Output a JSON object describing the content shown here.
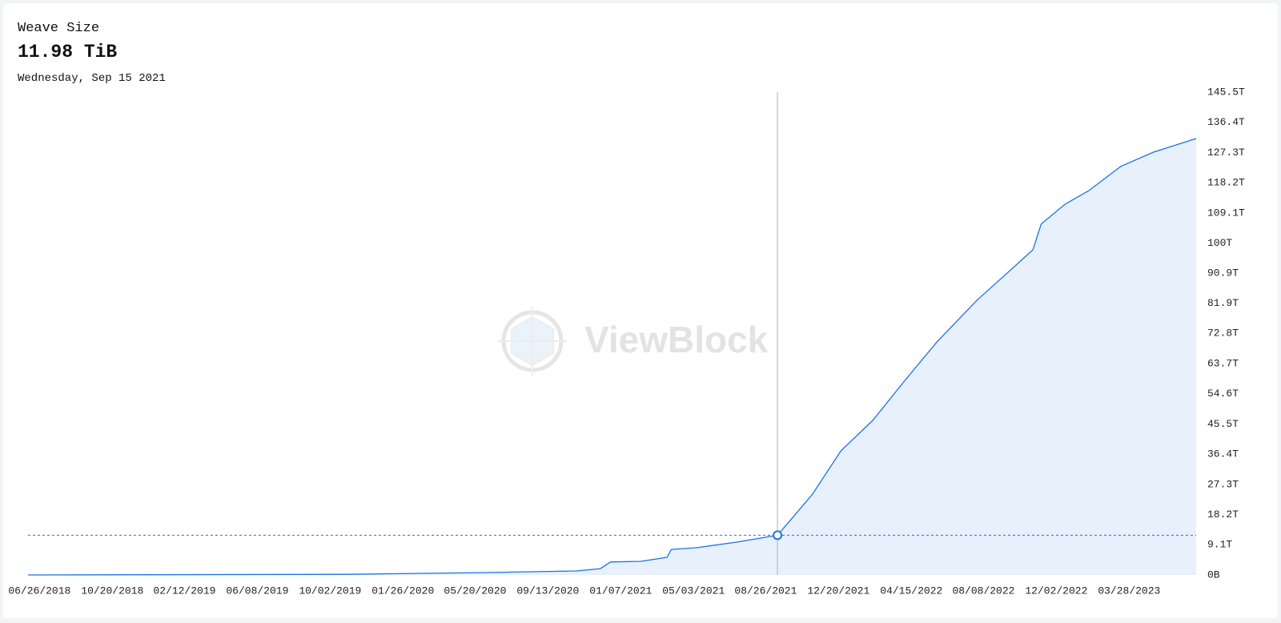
{
  "header": {
    "title": "Weave Size",
    "value_label": "11.98 TiB",
    "date_label": "Wednesday, Sep 15 2021"
  },
  "chart_data": {
    "type": "area",
    "watermark": "ViewBlock",
    "color": "#1a73e8",
    "fill": "#e8f0fc",
    "x": [
      "2018-06-09",
      "2019-11-02",
      "2020-05-30",
      "2020-10-30",
      "2020-12-07",
      "2020-12-23",
      "2021-02-09",
      "2021-03-23",
      "2021-03-30",
      "2021-05-09",
      "2021-07-12",
      "2021-09-15",
      "2021-10-16",
      "2021-11-10",
      "2021-12-25",
      "2022-02-14",
      "2022-04-06",
      "2022-05-27",
      "2022-07-30",
      "2022-10-27",
      "2022-11-09",
      "2022-12-17",
      "2023-01-24",
      "2023-03-16",
      "2023-05-07",
      "2023-07-14"
    ],
    "values": [
      0,
      0.2,
      0.7,
      1.2,
      1.9,
      3.9,
      4.1,
      5.3,
      7.7,
      8.2,
      9.9,
      11.98,
      18.8,
      24.4,
      37.4,
      46.6,
      58.6,
      70.2,
      82.8,
      98.0,
      105.7,
      111.7,
      115.8,
      123.1,
      127.4,
      131.5
    ],
    "cursor": {
      "x": "2021-09-15",
      "value": 11.98
    },
    "xlim": [
      "2018-06-09",
      "2023-07-14"
    ],
    "xticks": [
      {
        "value": "2018-06-26",
        "label": "06/26/2018"
      },
      {
        "value": "2018-10-20",
        "label": "10/20/2018"
      },
      {
        "value": "2019-02-12",
        "label": "02/12/2019"
      },
      {
        "value": "2019-06-08",
        "label": "06/08/2019"
      },
      {
        "value": "2019-10-02",
        "label": "10/02/2019"
      },
      {
        "value": "2020-01-26",
        "label": "01/26/2020"
      },
      {
        "value": "2020-05-20",
        "label": "05/20/2020"
      },
      {
        "value": "2020-09-13",
        "label": "09/13/2020"
      },
      {
        "value": "2021-01-07",
        "label": "01/07/2021"
      },
      {
        "value": "2021-05-03",
        "label": "05/03/2021"
      },
      {
        "value": "2021-08-26",
        "label": "08/26/2021"
      },
      {
        "value": "2021-12-20",
        "label": "12/20/2021"
      },
      {
        "value": "2022-04-15",
        "label": "04/15/2022"
      },
      {
        "value": "2022-08-08",
        "label": "08/08/2022"
      },
      {
        "value": "2022-12-02",
        "label": "12/02/2022"
      },
      {
        "value": "2023-03-28",
        "label": "03/28/2023"
      }
    ],
    "ylim": [
      0,
      145.5
    ],
    "yticks": [
      {
        "value": 0,
        "label": "0B"
      },
      {
        "value": 9.1,
        "label": "9.1T"
      },
      {
        "value": 18.2,
        "label": "18.2T"
      },
      {
        "value": 27.3,
        "label": "27.3T"
      },
      {
        "value": 36.4,
        "label": "36.4T"
      },
      {
        "value": 45.5,
        "label": "45.5T"
      },
      {
        "value": 54.6,
        "label": "54.6T"
      },
      {
        "value": 63.7,
        "label": "63.7T"
      },
      {
        "value": 72.8,
        "label": "72.8T"
      },
      {
        "value": 81.9,
        "label": "81.9T"
      },
      {
        "value": 90.9,
        "label": "90.9T"
      },
      {
        "value": 100,
        "label": "100T"
      },
      {
        "value": 109.1,
        "label": "109.1T"
      },
      {
        "value": 118.2,
        "label": "118.2T"
      },
      {
        "value": 127.3,
        "label": "127.3T"
      },
      {
        "value": 136.4,
        "label": "136.4T"
      },
      {
        "value": 145.5,
        "label": "145.5T"
      }
    ]
  }
}
